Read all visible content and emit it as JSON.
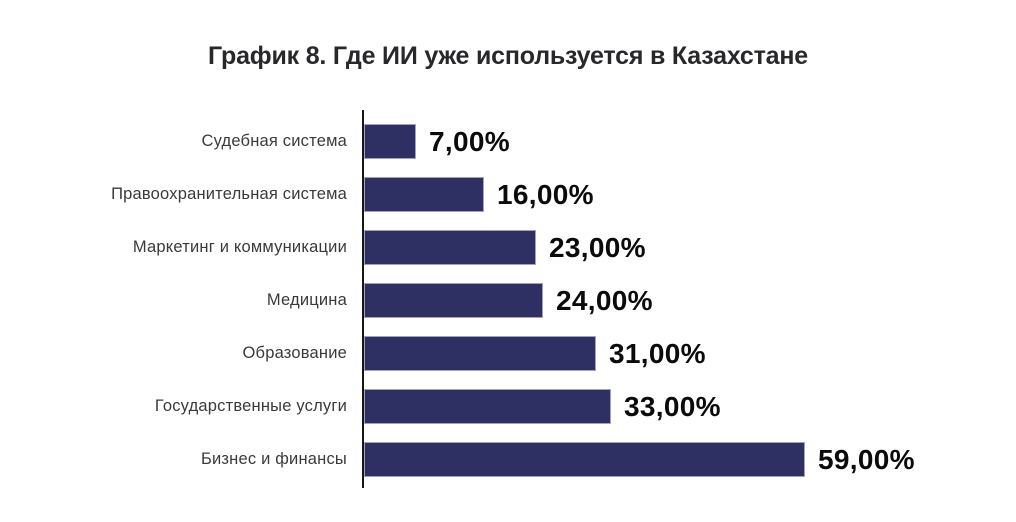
{
  "title": "График 8. Где ИИ уже используется в Казахстане",
  "colors": {
    "background": "#ffffff",
    "bar_fill": "#2e2f63",
    "bar_border": "#a2a2c0",
    "axis_line": "#161616",
    "title_text": "#28282b",
    "category_text": "#3a3a3a",
    "value_text": "#0b0b0b"
  },
  "chart_data": {
    "type": "bar",
    "orientation": "horizontal",
    "title": "График 8. Где ИИ уже используется в Казахстане",
    "categories": [
      "Судебная система",
      "Правоохранительная система",
      "Маркетинг и коммуникации",
      "Медицина",
      "Образование",
      "Государственные услуги",
      "Бизнес и финансы"
    ],
    "values": [
      7,
      16,
      23,
      24,
      31,
      33,
      59
    ],
    "value_labels": [
      "7,00%",
      "16,00%",
      "23,00%",
      "24,00%",
      "31,00%",
      "33,00%",
      "59,00%"
    ],
    "xlabel": "",
    "ylabel": "",
    "xlim": [
      0,
      59
    ],
    "grid": false,
    "legend": false,
    "value_label_position": "outside-end"
  }
}
